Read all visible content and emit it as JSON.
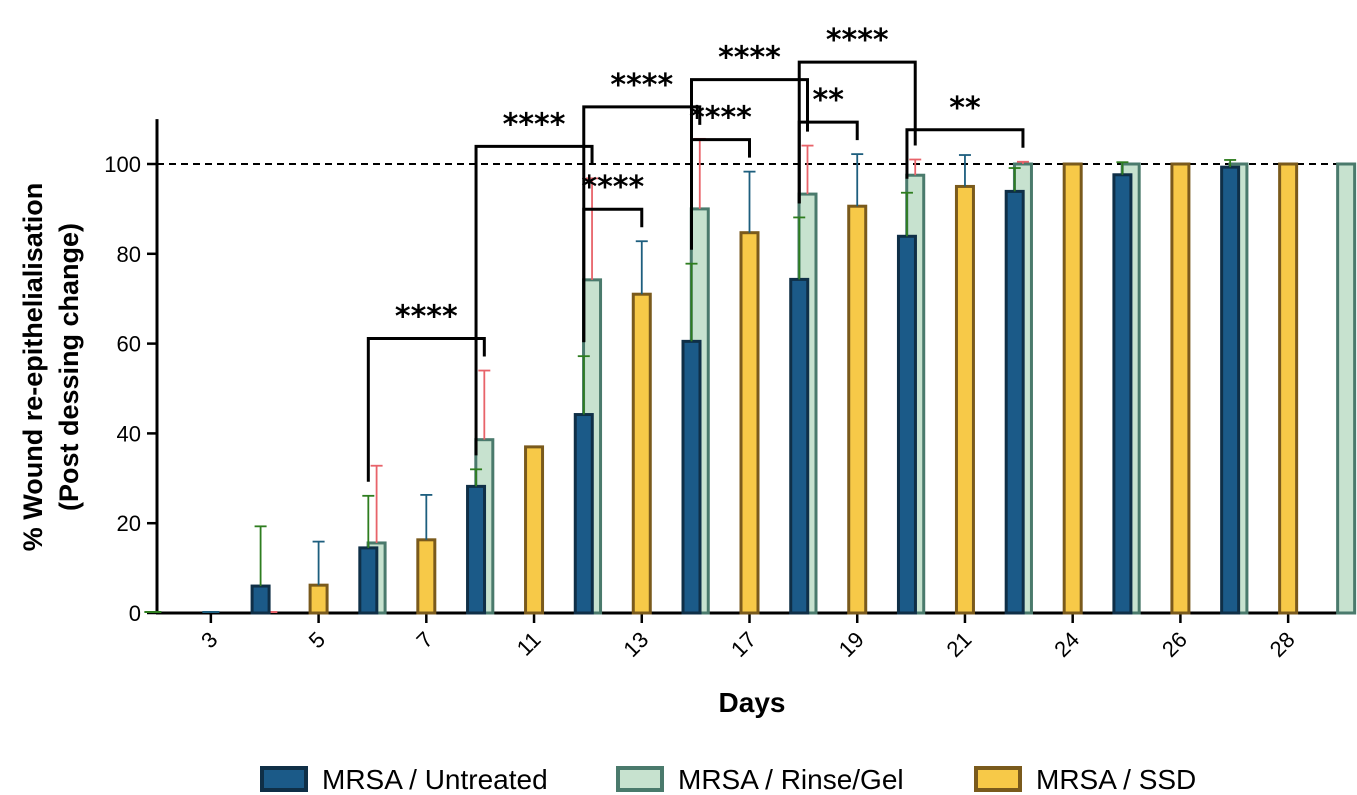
{
  "chart_data": {
    "type": "bar",
    "xlabel": "Days",
    "ylabel_line1": "% Wound re-epithelialisation",
    "ylabel_line2": "(Post dessing change)",
    "ylim": [
      0,
      110
    ],
    "yticks": [
      0,
      20,
      40,
      60,
      80,
      100
    ],
    "reference_line": 100,
    "categories": [
      "3",
      "5",
      "7",
      "11",
      "13",
      "17",
      "19",
      "21",
      "24",
      "26",
      "28"
    ],
    "series": [
      {
        "name": "MRSA / Untreated",
        "fill": "#1b5a88",
        "stroke": "#0f2f47",
        "error_color": "#2e7d1f",
        "values": [
          0,
          6,
          14.5,
          28.2,
          44.2,
          60.5,
          74.3,
          83.9,
          93.9,
          97.6,
          99.3
        ],
        "errors": [
          0,
          13.3,
          11.6,
          3.8,
          13,
          17.3,
          13.8,
          9.7,
          5.2,
          2.8,
          1.6
        ]
      },
      {
        "name": "MRSA / SSD",
        "fill": "#f7c948",
        "stroke": "#7a5a1c",
        "error_color": "#1d5e7e",
        "values": [
          0,
          6.2,
          16.3,
          37,
          71,
          84.7,
          90.6,
          95,
          100,
          100,
          100
        ],
        "errors": [
          0,
          9.7,
          10,
          0,
          11.8,
          13.6,
          11.6,
          7,
          0,
          0,
          0
        ]
      },
      {
        "name": "MRSA / Rinse/Gel",
        "fill": "#c7e2cf",
        "stroke": "#4a7a6c",
        "error_color": "#e8636a",
        "values": [
          0,
          15.6,
          38.6,
          74.2,
          90,
          93.3,
          97.5,
          100,
          100,
          100,
          100
        ],
        "errors": [
          0,
          17.2,
          15.4,
          22.6,
          15.6,
          10.8,
          3.5,
          0.5,
          0,
          0,
          0
        ]
      }
    ],
    "significance": [
      {
        "label": "****",
        "category": "7",
        "from": "MRSA / Untreated",
        "to": "MRSA / Rinse/Gel"
      },
      {
        "label": "****",
        "category": "11",
        "from": "MRSA / Untreated",
        "to": "MRSA / Rinse/Gel"
      },
      {
        "label": "****",
        "category": "13",
        "from": "MRSA / Untreated",
        "to": "MRSA / SSD"
      },
      {
        "label": "****",
        "category": "13",
        "from": "MRSA / Untreated",
        "to": "MRSA / Rinse/Gel"
      },
      {
        "label": "****",
        "category": "17",
        "from": "MRSA / Untreated",
        "to": "MRSA / SSD"
      },
      {
        "label": "****",
        "category": "17",
        "from": "MRSA / Untreated",
        "to": "MRSA / Rinse/Gel"
      },
      {
        "label": "**",
        "category": "19",
        "from": "MRSA / Untreated",
        "to": "MRSA / SSD"
      },
      {
        "label": "****",
        "category": "19",
        "from": "MRSA / Untreated",
        "to": "MRSA / Rinse/Gel"
      },
      {
        "label": "**",
        "category": "21",
        "from": "MRSA / Untreated",
        "to": "MRSA / Rinse/Gel"
      }
    ],
    "legend": {
      "placement": "bottom",
      "order": [
        "MRSA / Untreated",
        "MRSA / Rinse/Gel",
        "MRSA / SSD"
      ]
    }
  }
}
